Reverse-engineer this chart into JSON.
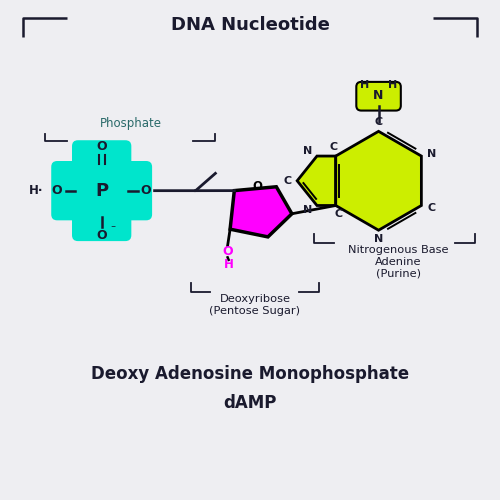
{
  "bg_color": "#eeeef2",
  "title_top": "DNA Nucleotide",
  "title_bottom1": "Deoxy Adenosine Monophosphate",
  "title_bottom2": "dAMP",
  "phosphate_color": "#00e5cc",
  "sugar_color": "#ff00ff",
  "base_color": "#ccee00",
  "text_color": "#1a1a2e",
  "phosphate_label": "Phosphate",
  "sugar_label": "Deoxyribose\n(Pentose Sugar)",
  "base_label": "Nitrogenous Base\nAdenine\n(Purine)"
}
